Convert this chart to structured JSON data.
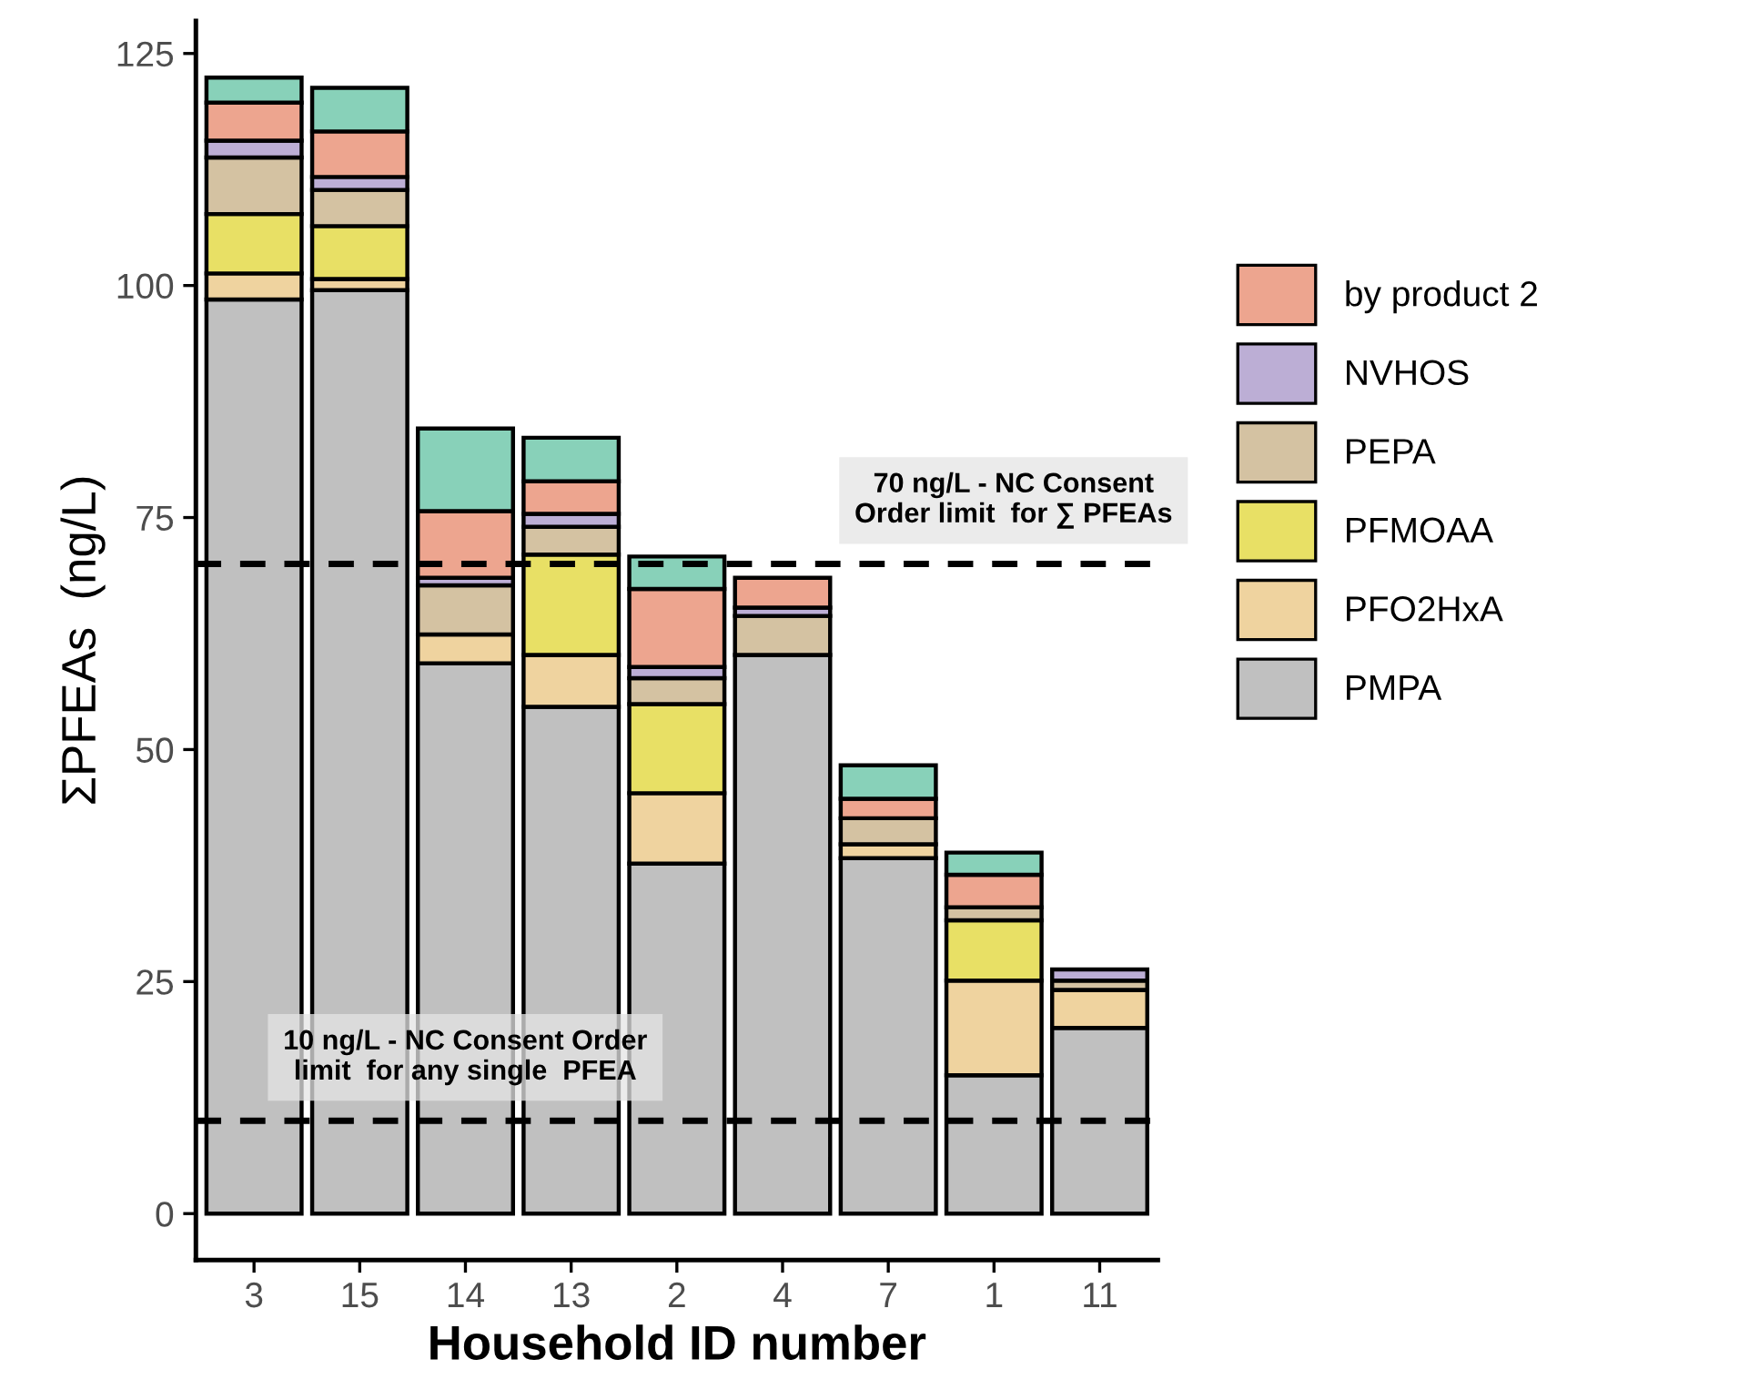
{
  "chart_data": {
    "type": "bar",
    "stacked": true,
    "xlabel": "Household ID number",
    "ylabel": "ΣPFEAs  (ng/L)",
    "categories": [
      "3",
      "15",
      "14",
      "13",
      "2",
      "4",
      "7",
      "1",
      "11"
    ],
    "ylim": [
      -5,
      128.5
    ],
    "yticks": [
      0,
      25,
      50,
      75,
      100,
      125
    ],
    "grid": false,
    "legend": "right",
    "series": [
      {
        "name": "PMPA",
        "color": "#c0c0c0",
        "values": [
          98.5,
          99.5,
          59.3,
          54.6,
          37.7,
          60.2,
          38.3,
          14.9,
          20.0
        ]
      },
      {
        "name": "PFO2HxA",
        "color": "#efd39f",
        "values": [
          2.8,
          1.2,
          3.1,
          5.6,
          7.6,
          null,
          1.5,
          10.2,
          4.1
        ]
      },
      {
        "name": "PFMOAA",
        "color": "#e8e065",
        "values": [
          6.4,
          5.7,
          null,
          10.8,
          9.6,
          null,
          null,
          6.5,
          null
        ]
      },
      {
        "name": "PEPA",
        "color": "#d4c2a2",
        "values": [
          6.1,
          3.9,
          5.3,
          3.0,
          2.8,
          4.2,
          2.8,
          1.4,
          1.0
        ]
      },
      {
        "name": "NVHOS",
        "color": "#bcaed5",
        "values": [
          1.8,
          1.4,
          0.8,
          1.4,
          1.2,
          0.9,
          null,
          null,
          1.2
        ]
      },
      {
        "name": "by product 2",
        "color": "#eda58f",
        "values": [
          4.1,
          4.9,
          7.2,
          3.5,
          8.4,
          3.2,
          2.1,
          3.5,
          null
        ]
      },
      {
        "color": "#88d1b9",
        "values": [
          2.7,
          4.7,
          8.9,
          4.7,
          3.5,
          null,
          3.6,
          2.4,
          null
        ]
      }
    ],
    "ref_lines": [
      {
        "axis": "y",
        "value": 70,
        "label": "70 ng/L - NC Consent\nOrder limit  for ∑ PFEAs",
        "line_style": "dashed",
        "color": "#000000"
      },
      {
        "axis": "y",
        "value": 10,
        "label": "10 ng/L - NC Consent Order\nlimit  for any single  PFEA",
        "line_style": "dashed",
        "color": "#000000"
      }
    ]
  }
}
